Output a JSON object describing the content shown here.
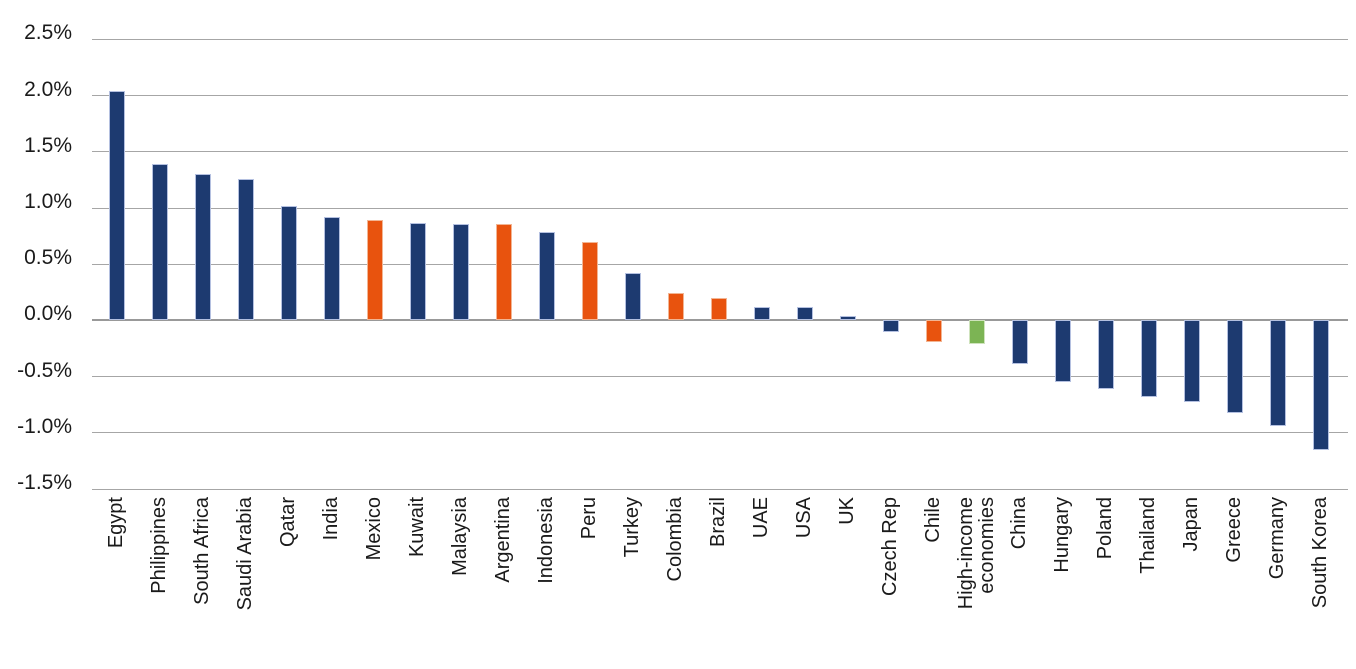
{
  "chart_data": {
    "type": "bar",
    "title": "",
    "xlabel": "",
    "ylabel": "",
    "unit": "%",
    "ylim": [
      -1.5,
      2.5
    ],
    "grid": true,
    "legend": "none",
    "palette": {
      "navy": "#1d3a70",
      "orange": "#e8530e",
      "green": "#7cb454",
      "navy_edge": "#b4c0e0",
      "orange_edge": "#f2b593",
      "green_edge": "#cfe3bd",
      "gridline": "#a6a6a6",
      "text": "#1a1a1a"
    },
    "y_ticks": [
      {
        "value": 2.5,
        "label": "2.5%"
      },
      {
        "value": 2.0,
        "label": "2.0%"
      },
      {
        "value": 1.5,
        "label": "1.5%"
      },
      {
        "value": 1.0,
        "label": "1.0%"
      },
      {
        "value": 0.5,
        "label": "0.5%"
      },
      {
        "value": 0.0,
        "label": "0.0%"
      },
      {
        "value": -0.5,
        "label": "-0.5%"
      },
      {
        "value": -1.0,
        "label": "-1.0%"
      },
      {
        "value": -1.5,
        "label": "-1.5%"
      }
    ],
    "bars": [
      {
        "label": "Egypt",
        "value": 2.04,
        "color": "navy"
      },
      {
        "label": "Philippines",
        "value": 1.39,
        "color": "navy"
      },
      {
        "label": "South Africa",
        "value": 1.3,
        "color": "navy"
      },
      {
        "label": "Saudi Arabia",
        "value": 1.26,
        "color": "navy"
      },
      {
        "label": "Qatar",
        "value": 1.02,
        "color": "navy"
      },
      {
        "label": "India",
        "value": 0.92,
        "color": "navy"
      },
      {
        "label": "Mexico",
        "value": 0.89,
        "color": "orange"
      },
      {
        "label": "Kuwait",
        "value": 0.87,
        "color": "navy"
      },
      {
        "label": "Malaysia",
        "value": 0.86,
        "color": "navy"
      },
      {
        "label": "Argentina",
        "value": 0.86,
        "color": "orange"
      },
      {
        "label": "Indonesia",
        "value": 0.79,
        "color": "navy"
      },
      {
        "label": "Peru",
        "value": 0.7,
        "color": "orange"
      },
      {
        "label": "Turkey",
        "value": 0.42,
        "color": "navy"
      },
      {
        "label": "Colombia",
        "value": 0.24,
        "color": "orange"
      },
      {
        "label": "Brazil",
        "value": 0.2,
        "color": "orange"
      },
      {
        "label": "UAE",
        "value": 0.12,
        "color": "navy"
      },
      {
        "label": "USA",
        "value": 0.12,
        "color": "navy"
      },
      {
        "label": "UK",
        "value": 0.04,
        "color": "navy"
      },
      {
        "label": "Czech Rep",
        "value": -0.1,
        "color": "navy"
      },
      {
        "label": "Chile",
        "value": -0.19,
        "color": "orange"
      },
      {
        "label": "High-income economies",
        "value": -0.21,
        "color": "green",
        "lines": [
          "High-income",
          "economies"
        ]
      },
      {
        "label": "China",
        "value": -0.39,
        "color": "navy"
      },
      {
        "label": "Hungary",
        "value": -0.55,
        "color": "navy"
      },
      {
        "label": "Poland",
        "value": -0.61,
        "color": "navy"
      },
      {
        "label": "Thailand",
        "value": -0.68,
        "color": "navy"
      },
      {
        "label": "Japan",
        "value": -0.73,
        "color": "navy"
      },
      {
        "label": "Greece",
        "value": -0.82,
        "color": "navy"
      },
      {
        "label": "Germany",
        "value": -0.94,
        "color": "navy"
      },
      {
        "label": "South Korea",
        "value": -1.15,
        "color": "navy"
      }
    ]
  }
}
